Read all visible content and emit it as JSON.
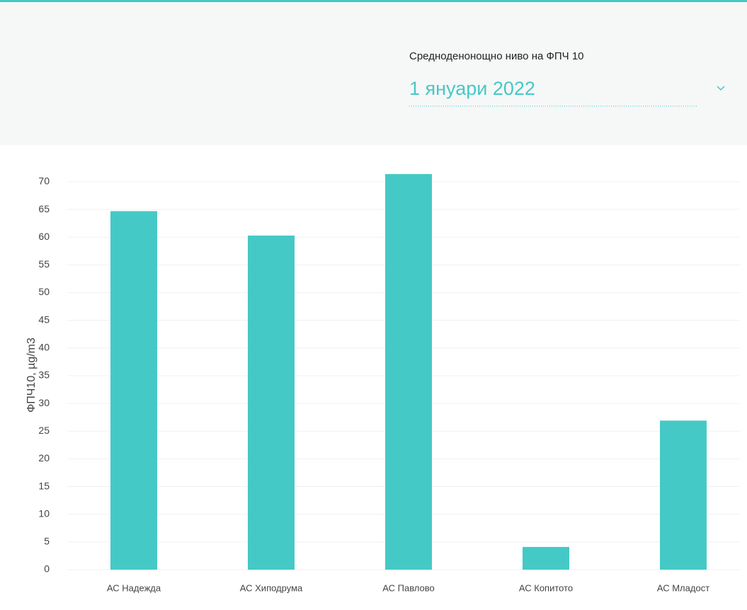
{
  "filter": {
    "label": "Средноденонощно ниво на ФПЧ 10",
    "value": "1 януари 2022"
  },
  "chart_data": {
    "type": "bar",
    "ylabel": "ФПЧ10, µg/m3",
    "categories": [
      "АС Надежда",
      "АС Хиподрума",
      "АС Павлово",
      "АС Копитото",
      "АС Младост"
    ],
    "values": [
      64.7,
      60.3,
      71.4,
      4.1,
      26.9
    ],
    "color": "#45c9c6",
    "ylim": [
      0,
      72
    ],
    "yticks": [
      0,
      5,
      10,
      15,
      20,
      25,
      30,
      35,
      40,
      45,
      50,
      55,
      60,
      65,
      70
    ],
    "grid": true
  }
}
